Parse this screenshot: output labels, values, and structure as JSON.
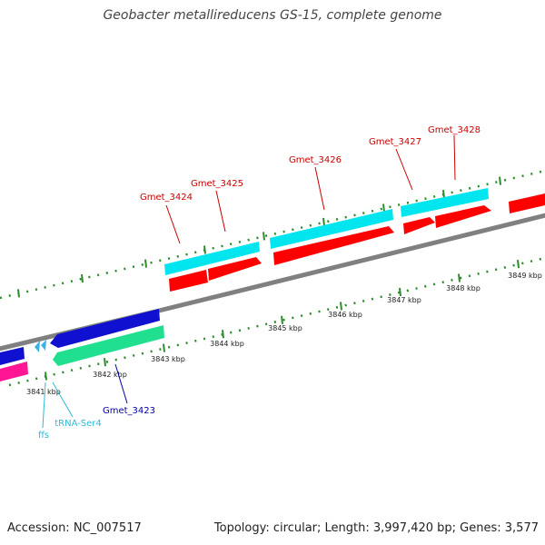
{
  "title": "Geobacter metallireducens GS-15, complete genome",
  "footer": {
    "accession": "Accession: NC_007517",
    "summary": "Topology: circular; Length: 3,997,420 bp; Genes: 3,577"
  },
  "colors": {
    "background": "#ffffff",
    "backbone": "#808080",
    "tick": "#2e8b2e",
    "cds_forward_outer": "#00e5ee",
    "cds_forward_inner": "#ff0000",
    "cds_reverse_outer": "#1010d0",
    "rna_reverse_inner": "#20e090",
    "ncrna": "#ff1493",
    "trna": "#3ab0e8",
    "label_red": "#cc0000",
    "label_blue": "#0000aa",
    "label_cyan": "#30b8d8"
  },
  "scale_labels": [
    "3841 kbp",
    "3842 kbp",
    "3843 kbp",
    "3844 kbp",
    "3845 kbp",
    "3846 kbp",
    "3847 kbp",
    "3848 kbp",
    "3849 kbp"
  ],
  "gene_labels": {
    "gmet_3424": "Gmet_3424",
    "gmet_3425": "Gmet_3425",
    "gmet_3426": "Gmet_3426",
    "gmet_3427": "Gmet_3427",
    "gmet_3428": "Gmet_3428",
    "gmet_3423": "Gmet_3423",
    "trna_ser4": "tRNA-Ser4",
    "ffs": "ffs"
  }
}
